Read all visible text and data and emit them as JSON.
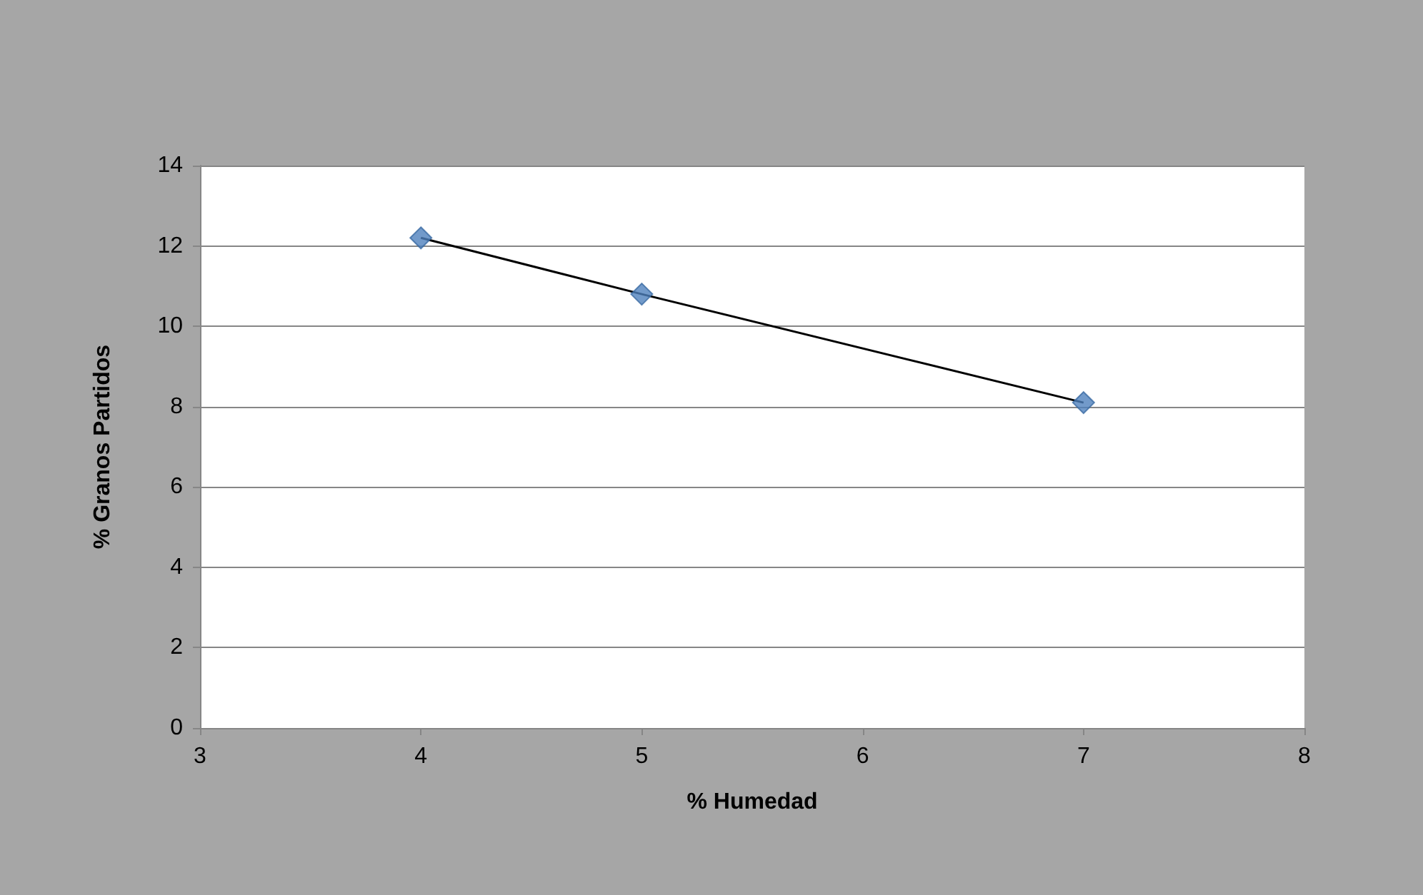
{
  "chart_data": {
    "type": "scatter",
    "xlabel": "% Humedad",
    "ylabel": "% Granos Partidos",
    "x": [
      4,
      5,
      7
    ],
    "series": [
      {
        "color": "#4f81bd",
        "marker": "diamond",
        "values": [
          12.2,
          10.8,
          8.1
        ]
      },
      {
        "type": "line",
        "color": "#000000",
        "marker": "none",
        "line_style": "solid",
        "values": [
          12.2,
          10.8,
          8.1
        ]
      }
    ],
    "xlim": [
      3,
      8
    ],
    "xticks": [
      3,
      4,
      5,
      6,
      7,
      8
    ],
    "ylim": [
      0,
      14
    ],
    "yticks": [
      0,
      2,
      4,
      6,
      8,
      10,
      12,
      14
    ],
    "grid": "y"
  }
}
